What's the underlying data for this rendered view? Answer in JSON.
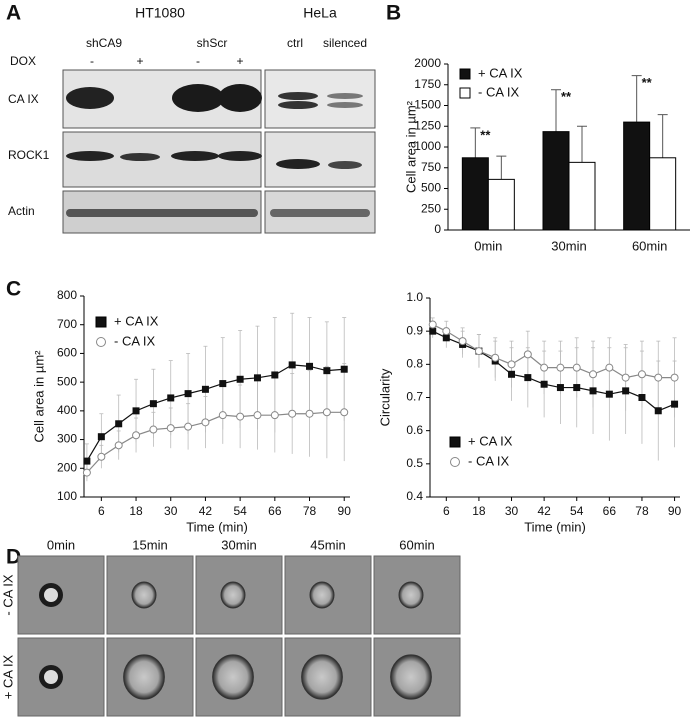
{
  "chart_data": [
    {
      "type": "bar",
      "ylabel": "Cell area in µm²",
      "categories": [
        "0min",
        "30min",
        "60min"
      ],
      "series": [
        {
          "name": "+ CA IX",
          "color": "#111111",
          "values": [
            870,
            1185,
            1300
          ],
          "errors": [
            360,
            505,
            560
          ]
        },
        {
          "name": "- CA IX",
          "color": "#ffffff",
          "values": [
            610,
            815,
            870
          ],
          "errors": [
            280,
            435,
            520
          ]
        }
      ],
      "annotations": [
        "**",
        "**",
        "**"
      ],
      "ylim": [
        0,
        2000
      ],
      "yticks": [
        0,
        250,
        500,
        750,
        1000,
        1250,
        1500,
        1750,
        2000
      ],
      "legend": "upper left"
    },
    {
      "type": "line",
      "xlabel": "Time (min)",
      "ylabel": "Cell area in µm²",
      "x": [
        1,
        6,
        12,
        18,
        24,
        30,
        36,
        42,
        48,
        54,
        60,
        66,
        72,
        78,
        84,
        90
      ],
      "series": [
        {
          "name": "+ CA IX",
          "color": "#111111",
          "marker": "square",
          "marker_fill": "#111111",
          "values": [
            225,
            310,
            355,
            400,
            425,
            445,
            460,
            475,
            495,
            510,
            515,
            525,
            560,
            555,
            540,
            545
          ],
          "errors": [
            60,
            80,
            100,
            110,
            120,
            130,
            140,
            150,
            160,
            170,
            180,
            200,
            180,
            170,
            170,
            180
          ]
        },
        {
          "name": "- CA IX",
          "color": "#888888",
          "marker": "circle",
          "marker_fill": "#ffffff",
          "values": [
            185,
            240,
            280,
            315,
            335,
            340,
            345,
            360,
            385,
            380,
            385,
            385,
            390,
            390,
            395,
            395
          ],
          "errors": [
            30,
            40,
            50,
            60,
            60,
            70,
            80,
            90,
            100,
            110,
            120,
            130,
            140,
            150,
            160,
            170
          ]
        }
      ],
      "xlim": [
        0,
        92
      ],
      "xticks": [
        6,
        18,
        30,
        42,
        54,
        66,
        78,
        90
      ],
      "ylim": [
        100,
        800
      ],
      "yticks": [
        100,
        200,
        300,
        400,
        500,
        600,
        700,
        800
      ],
      "legend": "upper left"
    },
    {
      "type": "line",
      "xlabel": "Time (min)",
      "ylabel": "Circularity",
      "x": [
        1,
        6,
        12,
        18,
        24,
        30,
        36,
        42,
        48,
        54,
        60,
        66,
        72,
        78,
        84,
        90
      ],
      "series": [
        {
          "name": "+ CA IX",
          "color": "#111111",
          "marker": "square",
          "marker_fill": "#111111",
          "values": [
            0.9,
            0.88,
            0.86,
            0.84,
            0.81,
            0.77,
            0.76,
            0.74,
            0.73,
            0.73,
            0.72,
            0.71,
            0.72,
            0.7,
            0.66,
            0.68
          ],
          "errors": [
            0.02,
            0.03,
            0.04,
            0.05,
            0.06,
            0.08,
            0.09,
            0.1,
            0.11,
            0.12,
            0.13,
            0.14,
            0.13,
            0.14,
            0.15,
            0.13
          ]
        },
        {
          "name": "- CA IX",
          "color": "#888888",
          "marker": "circle",
          "marker_fill": "#ffffff",
          "values": [
            0.92,
            0.9,
            0.87,
            0.84,
            0.82,
            0.8,
            0.83,
            0.79,
            0.79,
            0.79,
            0.77,
            0.79,
            0.76,
            0.77,
            0.76,
            0.76
          ],
          "errors": [
            0.02,
            0.03,
            0.04,
            0.05,
            0.06,
            0.07,
            0.07,
            0.08,
            0.08,
            0.09,
            0.1,
            0.09,
            0.1,
            0.1,
            0.11,
            0.12
          ]
        }
      ],
      "xlim": [
        0,
        92
      ],
      "xticks": [
        6,
        18,
        30,
        42,
        54,
        66,
        78,
        90
      ],
      "ylim": [
        0.4,
        1.0
      ],
      "yticks": [
        0.4,
        0.5,
        0.6,
        0.7,
        0.8,
        0.9,
        {
          "value": 1,
          "label": "1.0"
        }
      ],
      "legend": "lower left"
    }
  ],
  "panels": {
    "A": {
      "label": "A",
      "groups": [
        "HT1080",
        "HeLa"
      ],
      "lanes": [
        "shCA9",
        "shScr",
        "ctrl",
        "silenced"
      ],
      "dox_label": "DOX",
      "dox": [
        "-",
        "+",
        "-",
        "+"
      ],
      "rows": [
        "CA IX",
        "ROCK1",
        "Actin"
      ]
    },
    "B": {
      "label": "B"
    },
    "C": {
      "label": "C"
    },
    "D": {
      "label": "D",
      "times": [
        "0min",
        "15min",
        "30min",
        "45min",
        "60min"
      ],
      "rows": [
        "- CA IX",
        "+ CA IX"
      ]
    }
  }
}
